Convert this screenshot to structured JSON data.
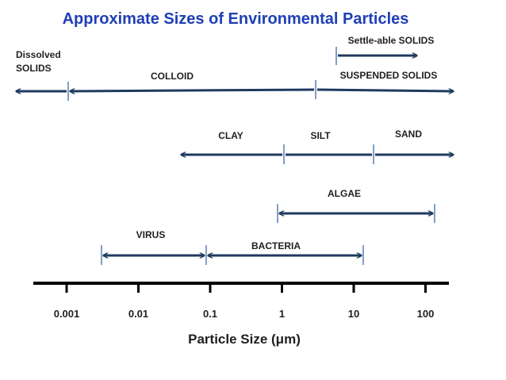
{
  "title": "Approximate Sizes of Environmental Particles",
  "axis": {
    "title": "Particle Size (μm)",
    "scale": "log",
    "ticks": [
      {
        "value": 0.001,
        "label": "0.001"
      },
      {
        "value": 0.01,
        "label": "0.01"
      },
      {
        "value": 0.1,
        "label": "0.1"
      },
      {
        "value": 1,
        "label": "1"
      },
      {
        "value": 10,
        "label": "10"
      },
      {
        "value": 100,
        "label": "100"
      }
    ]
  },
  "labels": {
    "dissolved_line1": "Dissolved",
    "dissolved_line2": "SOLIDS",
    "colloid": "COLLOID",
    "suspended": "SUSPENDED SOLIDS",
    "settleable": "Settle-able SOLIDS",
    "clay": "CLAY",
    "silt": "SILT",
    "sand": "SAND",
    "algae": "ALGAE",
    "virus": "VIRUS",
    "bacteria": "BACTERIA"
  },
  "colors": {
    "title": "#1f3fb5",
    "arrow": "#1f3a5f",
    "marker": "#7f9fc7",
    "text": "#1f1f1f"
  }
}
